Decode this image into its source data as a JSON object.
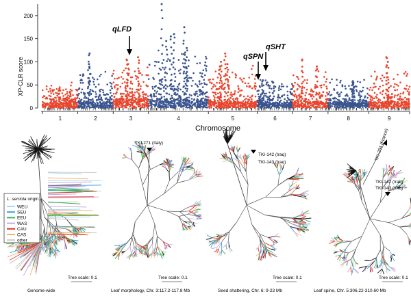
{
  "chart_data": {
    "type": "scatter",
    "xlabel": "Chromosome",
    "ylabel": "XP-CLR score",
    "ylim": [
      0,
      225
    ],
    "yticks": [
      0,
      50,
      100,
      150,
      200
    ],
    "chromosomes": [
      {
        "label": "1",
        "color": "#e8462f",
        "points": 130,
        "base": 22,
        "spread": 38,
        "peaks": [
          42,
          35
        ]
      },
      {
        "label": "2",
        "color": "#3a548f",
        "points": 130,
        "base": 25,
        "spread": 60,
        "peaks": [
          118,
          95
        ]
      },
      {
        "label": "3",
        "color": "#e8462f",
        "points": 130,
        "base": 35,
        "spread": 65,
        "peaks": [
          110,
          95,
          105
        ]
      },
      {
        "label": "4",
        "color": "#3a548f",
        "points": 220,
        "base": 35,
        "spread": 95,
        "peaks": [
          225,
          175,
          160,
          155,
          145,
          130,
          120
        ]
      },
      {
        "label": "5",
        "color": "#e8462f",
        "points": 180,
        "base": 25,
        "spread": 70,
        "peaks": [
          118,
          100,
          95,
          90
        ]
      },
      {
        "label": "6",
        "color": "#3a548f",
        "points": 130,
        "base": 22,
        "spread": 45,
        "peaks": [
          60,
          55
        ]
      },
      {
        "label": "7",
        "color": "#e8462f",
        "points": 130,
        "base": 28,
        "spread": 60,
        "peaks": [
          105,
          90
        ]
      },
      {
        "label": "8",
        "color": "#3a548f",
        "points": 150,
        "base": 22,
        "spread": 45,
        "peaks": [
          58,
          52
        ]
      },
      {
        "label": "9",
        "color": "#e8462f",
        "points": 150,
        "base": 25,
        "spread": 60,
        "peaks": [
          110,
          100
        ]
      }
    ],
    "annotations": [
      {
        "label": "qLFD",
        "chromosome": "3"
      },
      {
        "label": "qSPN",
        "chromosome": "5"
      },
      {
        "label": "qSHT",
        "chromosome": "6"
      }
    ]
  },
  "legend": {
    "title_italic": "L. serriola",
    "title_rest": " origin",
    "entries": [
      {
        "label": "WEU",
        "color": "#a8d8f0"
      },
      {
        "label": "SEU",
        "color": "#3aa0e0"
      },
      {
        "label": "EEU",
        "color": "#3cb050"
      },
      {
        "label": "WAS",
        "color": "#c8a8e0"
      },
      {
        "label": "CAU",
        "color": "#e03828"
      },
      {
        "label": "CAS",
        "color": "#f0b070"
      },
      {
        "label": "other",
        "color": "#c8c8c8"
      }
    ]
  },
  "trees": [
    {
      "caption": "Genome-wide",
      "scale": "Tree scale: 0.1",
      "labels": []
    },
    {
      "caption": "Leaf morphology, Chr. 3:117.2-117.8 Mb",
      "scale": "Tree scale: 0.1",
      "labels": [
        "TKI-271 (Italy)"
      ]
    },
    {
      "caption": "Seed shattering, Chr. 6: 9-23 Mb",
      "scale": "Tree scale: 0.1",
      "labels": [
        "TKI-142 (Iraq)",
        "TKI-143 (Iraq)"
      ]
    },
    {
      "caption": "Leaf spine, Chr. 5:306.22-310.60 Mb",
      "scale": "Tree scale: 0.1",
      "labels": [
        "TKI-264 (France)",
        "TKI-142 (Iraq)",
        "TKI-143 (Iraq)"
      ]
    }
  ]
}
